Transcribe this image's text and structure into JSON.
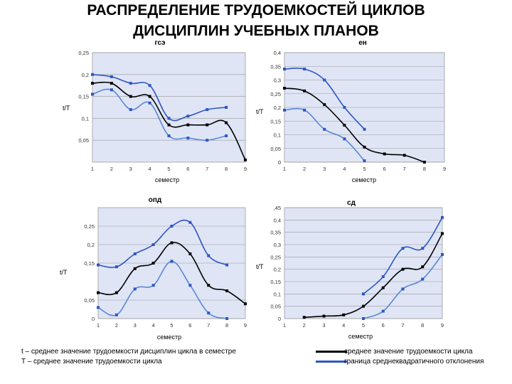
{
  "title": {
    "line1": "РАСПРЕДЕЛЕНИЕ ТРУДОЕМКОСТЕЙ ЦИКЛОВ",
    "line2": "ДИСЦИПЛИН УЧЕБНЫХ ПЛАНОВ"
  },
  "colors": {
    "mean": "#000000",
    "bound": "#2f55c4",
    "bound_light": "#5a86d6",
    "plot_bg": "#dfe5f5"
  },
  "chart_data": [
    {
      "type": "line",
      "title": "гсэ",
      "xlabel": "семестр",
      "ylabel": "t/T",
      "x": [
        1,
        2,
        3,
        4,
        5,
        6,
        7,
        8,
        9
      ],
      "xlim": [
        1,
        9
      ],
      "ylim": [
        0,
        0.25
      ],
      "yticks": [
        "0,25",
        "0,2",
        "0,15",
        "0,1",
        "0,05"
      ],
      "ytick_values": [
        0.25,
        0.2,
        0.15,
        0.1,
        0.05
      ],
      "series": [
        {
          "role": "upper",
          "x": [
            1,
            2,
            3,
            4,
            5,
            6,
            7,
            8
          ],
          "values": [
            0.2,
            0.195,
            0.18,
            0.175,
            0.1,
            0.105,
            0.12,
            0.125
          ]
        },
        {
          "role": "mean",
          "x": [
            1,
            2,
            3,
            4,
            5,
            6,
            7,
            8,
            9
          ],
          "values": [
            0.18,
            0.18,
            0.15,
            0.15,
            0.085,
            0.085,
            0.085,
            0.09,
            0.005
          ]
        },
        {
          "role": "lower",
          "x": [
            1,
            2,
            3,
            4,
            5,
            6,
            7,
            8
          ],
          "values": [
            0.155,
            0.165,
            0.12,
            0.135,
            0.06,
            0.055,
            0.05,
            0.06
          ]
        }
      ]
    },
    {
      "type": "line",
      "title": "ен",
      "xlabel": "семестр",
      "ylabel": "t/T",
      "x": [
        1,
        2,
        3,
        4,
        5,
        6,
        7,
        8,
        9
      ],
      "xlim": [
        1,
        9
      ],
      "ylim": [
        0,
        0.4
      ],
      "yticks": [
        "0,4",
        "0,35",
        "0,3",
        "0,25",
        "0,2",
        "0,15",
        "0,1",
        "0,05",
        "0"
      ],
      "ytick_values": [
        0.4,
        0.35,
        0.3,
        0.25,
        0.2,
        0.15,
        0.1,
        0.05,
        0
      ],
      "series": [
        {
          "role": "upper",
          "x": [
            1,
            2,
            3,
            4,
            5
          ],
          "values": [
            0.34,
            0.34,
            0.3,
            0.2,
            0.12
          ]
        },
        {
          "role": "mean",
          "x": [
            1,
            2,
            3,
            4,
            5,
            6,
            7,
            8
          ],
          "values": [
            0.27,
            0.26,
            0.21,
            0.135,
            0.055,
            0.03,
            0.025,
            0.0
          ]
        },
        {
          "role": "lower",
          "x": [
            1,
            2,
            3,
            4,
            5
          ],
          "values": [
            0.19,
            0.19,
            0.12,
            0.085,
            0.005
          ]
        }
      ]
    },
    {
      "type": "line",
      "title": "опд",
      "xlabel": "семестр",
      "ylabel": "t/T",
      "x": [
        1,
        2,
        3,
        4,
        5,
        6,
        7,
        8,
        9
      ],
      "xlim": [
        1,
        9
      ],
      "ylim": [
        0,
        0.3
      ],
      "yticks": [
        "0,25",
        "0,2",
        "0,15",
        "0,05",
        "0"
      ],
      "ytick_values": [
        0.25,
        0.2,
        0.15,
        0.05,
        0
      ],
      "series": [
        {
          "role": "upper",
          "x": [
            1,
            2,
            3,
            4,
            5,
            6,
            7,
            8
          ],
          "values": [
            0.145,
            0.14,
            0.175,
            0.2,
            0.25,
            0.26,
            0.17,
            0.145
          ]
        },
        {
          "role": "mean",
          "x": [
            1,
            2,
            3,
            4,
            5,
            6,
            7,
            8,
            9
          ],
          "values": [
            0.07,
            0.07,
            0.135,
            0.15,
            0.205,
            0.175,
            0.09,
            0.075,
            0.04
          ]
        },
        {
          "role": "lower",
          "x": [
            1,
            2,
            3,
            4,
            5,
            6,
            7,
            8
          ],
          "values": [
            0.03,
            0.01,
            0.08,
            0.09,
            0.155,
            0.09,
            0.015,
            0.0
          ]
        }
      ]
    },
    {
      "type": "line",
      "title": "сд",
      "xlabel": "семестр",
      "ylabel": "t/T",
      "x": [
        1,
        2,
        3,
        4,
        5,
        6,
        7,
        8,
        9
      ],
      "xlim": [
        1,
        9
      ],
      "ylim": [
        0,
        0.45
      ],
      "yticks": [
        ",45",
        "0,4",
        "0,35",
        "0,3",
        "0,25",
        "0,2",
        "0,15",
        "0,1",
        "0,05",
        "0"
      ],
      "ytick_values": [
        0.45,
        0.4,
        0.35,
        0.3,
        0.25,
        0.2,
        0.15,
        0.1,
        0.05,
        0
      ],
      "series": [
        {
          "role": "upper",
          "x": [
            5,
            6,
            7,
            8,
            9
          ],
          "values": [
            0.1,
            0.17,
            0.285,
            0.285,
            0.41
          ]
        },
        {
          "role": "mean",
          "x": [
            2,
            3,
            4,
            5,
            6,
            7,
            8,
            9
          ],
          "values": [
            0.005,
            0.01,
            0.015,
            0.05,
            0.125,
            0.2,
            0.21,
            0.345
          ]
        },
        {
          "role": "lower",
          "x": [
            5,
            6,
            7,
            8,
            9
          ],
          "values": [
            0.0,
            0.03,
            0.12,
            0.16,
            0.26
          ]
        }
      ]
    }
  ],
  "legend": {
    "note_t": "t – среднее значение трудоемкости дисциплин цикла в семестре",
    "note_T": "T – среднее значение трудоемкости цикла",
    "mean_label": "среднее значение трудоемкости цикла",
    "bound_label": "граница среднеквадратичного отклонения"
  }
}
